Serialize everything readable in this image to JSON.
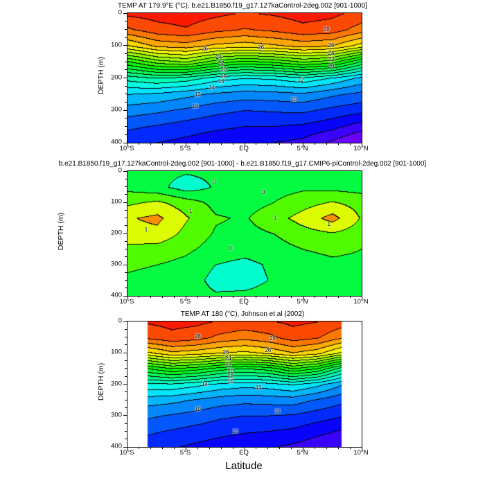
{
  "figure": {
    "xlabel": "Latitude",
    "ylabel": "DEPTH (m)",
    "x_ticks": [
      "10°S",
      "5°S",
      "EQ",
      "5°N",
      "10°N"
    ],
    "y_ticks": [
      "0",
      "100",
      "200",
      "300",
      "400"
    ]
  },
  "chart_data": [
    {
      "type": "contour",
      "title": "TEMP AT 179.9°E (°C), b.e21.B1850.f19_g17.127kaControl-2deg.002 [901-1000]",
      "xlabel": "Latitude",
      "ylabel": "DEPTH (m)",
      "xlim": [
        -10,
        10
      ],
      "data_x_range": [
        -10,
        10
      ],
      "depth_range": [
        0,
        400
      ],
      "x": [
        -10,
        -7.5,
        -5,
        -2.5,
        0,
        2.5,
        5,
        7.5,
        10
      ],
      "depths": [
        0,
        50,
        100,
        150,
        200,
        250,
        300,
        350,
        400
      ],
      "lev0": 6,
      "interval": 1,
      "cmin": 6,
      "cmax": 30,
      "grid": [
        [
          29.2,
          29.4,
          29.5,
          29.2,
          28.9,
          29.1,
          29.4,
          29.2,
          28.7
        ],
        [
          27.8,
          28.6,
          28.9,
          28.3,
          27.9,
          28.2,
          28.7,
          28.5,
          27.5
        ],
        [
          24.9,
          26.2,
          26.5,
          25.7,
          25.4,
          25.8,
          26.3,
          26.0,
          24.5
        ],
        [
          19.8,
          21.4,
          22.0,
          20.4,
          19.6,
          20.1,
          21.0,
          20.4,
          17.8
        ],
        [
          15.4,
          16.0,
          15.6,
          14.5,
          14.0,
          14.2,
          14.8,
          13.9,
          12.7
        ],
        [
          13.0,
          12.8,
          12.3,
          11.8,
          11.5,
          11.6,
          11.8,
          11.2,
          10.7
        ],
        [
          11.5,
          11.2,
          10.8,
          10.3,
          10.0,
          10.1,
          10.2,
          9.7,
          9.3
        ],
        [
          10.2,
          9.9,
          9.5,
          9.2,
          9.0,
          9.0,
          8.8,
          8.3,
          7.5
        ],
        [
          9.3,
          9.0,
          8.7,
          8.4,
          8.2,
          8.0,
          7.7,
          6.8,
          5.7
        ]
      ],
      "labels": [
        {
          "t": "28",
          "x": 85,
          "y": 13
        },
        {
          "t": "26",
          "x": 33,
          "y": 28
        },
        {
          "t": "26",
          "x": 57,
          "y": 27
        },
        {
          "t": "26",
          "x": 87,
          "y": 25
        },
        {
          "t": "24",
          "x": 39,
          "y": 34
        },
        {
          "t": "24",
          "x": 87,
          "y": 31
        },
        {
          "t": "22",
          "x": 40,
          "y": 39
        },
        {
          "t": "22",
          "x": 87,
          "y": 36
        },
        {
          "t": "20",
          "x": 41,
          "y": 44
        },
        {
          "t": "20",
          "x": 87,
          "y": 41
        },
        {
          "t": "18",
          "x": 41,
          "y": 49
        },
        {
          "t": "16",
          "x": 40,
          "y": 53
        },
        {
          "t": "14",
          "x": 36,
          "y": 58
        },
        {
          "t": "12",
          "x": 30,
          "y": 63
        },
        {
          "t": "12",
          "x": 74,
          "y": 52
        },
        {
          "t": "10",
          "x": 29,
          "y": 72
        },
        {
          "t": "10",
          "x": 71,
          "y": 67
        }
      ]
    },
    {
      "type": "contour",
      "title": "b.e21.B1850.f19_g17.127kaControl-2deg.002 [901-1000] - b.e21.B1850.f19_g17.CMIP6-piControl-2deg.002 [901-1000]",
      "xlabel": "Latitude",
      "ylabel": "DEPTH (m)",
      "xlim": [
        -10,
        10
      ],
      "data_x_range": [
        -10,
        10
      ],
      "depth_range": [
        0,
        400
      ],
      "x": [
        -10,
        -7.5,
        -5,
        -2.5,
        0,
        2.5,
        5,
        7.5,
        10
      ],
      "depths": [
        0,
        50,
        100,
        150,
        200,
        250,
        300,
        350,
        400
      ],
      "lev0": -2,
      "interval": 0.5,
      "cmin": -1.75,
      "cmax": 2.25,
      "grid": [
        [
          0.2,
          0.15,
          0.05,
          0.1,
          0.15,
          0.2,
          0.25,
          0.25,
          0.2
        ],
        [
          0.35,
          0.15,
          -0.25,
          0.05,
          0.2,
          0.3,
          0.4,
          0.35,
          0.3
        ],
        [
          0.9,
          1.1,
          0.75,
          0.35,
          0.3,
          0.5,
          0.8,
          1.05,
          0.8
        ],
        [
          1.45,
          1.62,
          1.05,
          0.55,
          0.45,
          0.8,
          1.2,
          1.68,
          0.95
        ],
        [
          1.3,
          1.35,
          0.85,
          0.45,
          0.35,
          0.5,
          0.8,
          0.95,
          0.75
        ],
        [
          0.85,
          0.8,
          0.6,
          0.3,
          0.2,
          0.3,
          0.5,
          0.6,
          0.5
        ],
        [
          0.55,
          0.5,
          0.35,
          0.0,
          -0.15,
          0.1,
          0.3,
          0.4,
          0.4
        ],
        [
          0.45,
          0.4,
          0.25,
          -0.15,
          -0.2,
          0.05,
          0.3,
          0.35,
          0.3
        ],
        [
          0.4,
          0.35,
          0.2,
          0.05,
          0.1,
          0.2,
          0.3,
          0.3,
          0.3
        ]
      ],
      "labels": [
        {
          "t": "0",
          "x": 37,
          "y": 9
        },
        {
          "t": "0",
          "x": 58,
          "y": 17
        },
        {
          "t": "0",
          "x": 44,
          "y": 62
        },
        {
          "t": "1",
          "x": 27,
          "y": 32
        },
        {
          "t": "1",
          "x": 8,
          "y": 47
        },
        {
          "t": "1",
          "x": 63,
          "y": 38
        },
        {
          "t": "1",
          "x": 86,
          "y": 43
        }
      ]
    },
    {
      "type": "contour",
      "title": "TEMP AT 180 (°C), Johnson et al (2002)",
      "xlabel": "Latitude",
      "ylabel": "DEPTH (m)",
      "xlim": [
        -10,
        10
      ],
      "data_x_range": [
        -8.3,
        8.3
      ],
      "depth_range": [
        0,
        400
      ],
      "x": [
        -8,
        -6,
        -4,
        -2,
        0,
        2,
        4,
        6,
        8
      ],
      "depths": [
        0,
        50,
        100,
        150,
        200,
        250,
        300,
        350,
        400
      ],
      "lev0": 6,
      "interval": 1,
      "cmin": 6,
      "cmax": 30,
      "grid": [
        [
          29.1,
          29.3,
          29.2,
          28.9,
          28.7,
          28.9,
          29.2,
          29.0,
          28.5
        ],
        [
          28.2,
          28.7,
          28.4,
          27.7,
          27.3,
          27.7,
          28.5,
          28.1,
          27.1
        ],
        [
          24.7,
          25.7,
          25.4,
          24.9,
          24.7,
          25.1,
          25.9,
          25.3,
          23.7
        ],
        [
          18.9,
          19.9,
          19.4,
          18.4,
          17.9,
          18.4,
          19.9,
          18.9,
          16.4
        ],
        [
          14.7,
          14.8,
          14.3,
          13.7,
          13.4,
          13.6,
          14.1,
          13.3,
          12.1
        ],
        [
          12.5,
          12.3,
          11.9,
          11.5,
          11.3,
          11.4,
          11.5,
          10.9,
          10.3
        ],
        [
          11.2,
          10.9,
          10.6,
          10.2,
          10.0,
          10.0,
          9.9,
          9.5,
          9.1
        ],
        [
          10.2,
          9.9,
          9.6,
          9.3,
          9.1,
          9.0,
          8.8,
          8.3,
          7.9
        ],
        [
          9.4,
          9.1,
          8.8,
          8.5,
          8.3,
          8.1,
          7.8,
          7.4,
          7.1
        ]
      ],
      "labels": [
        {
          "t": "28",
          "x": 30,
          "y": 12
        },
        {
          "t": "28",
          "x": 62,
          "y": 14
        },
        {
          "t": "26",
          "x": 42,
          "y": 25
        },
        {
          "t": "26",
          "x": 60,
          "y": 23
        },
        {
          "t": "24",
          "x": 43,
          "y": 30
        },
        {
          "t": "22",
          "x": 43,
          "y": 35
        },
        {
          "t": "20",
          "x": 44,
          "y": 40
        },
        {
          "t": "18",
          "x": 44,
          "y": 44
        },
        {
          "t": "16",
          "x": 44,
          "y": 48
        },
        {
          "t": "14",
          "x": 33,
          "y": 50
        },
        {
          "t": "12",
          "x": 56,
          "y": 53
        },
        {
          "t": "10",
          "x": 30,
          "y": 70
        },
        {
          "t": "10",
          "x": 64,
          "y": 72
        },
        {
          "t": "10",
          "x": 46,
          "y": 88
        }
      ]
    }
  ]
}
